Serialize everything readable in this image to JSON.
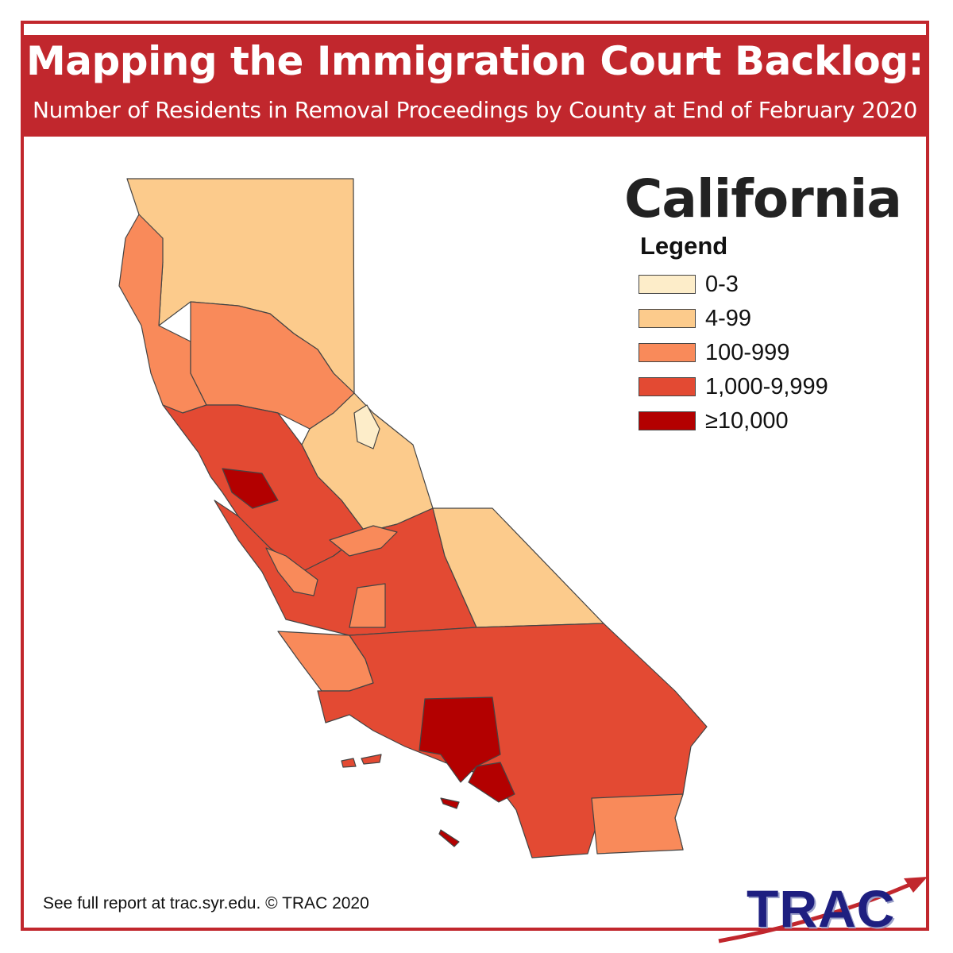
{
  "header": {
    "title": "Mapping the Immigration Court Backlog:",
    "subtitle": "Number of Residents in Removal Proceedings by County at End of February 2020"
  },
  "map": {
    "state_name": "California",
    "legend_title": "Legend",
    "legend": [
      {
        "label": "0-3",
        "color": "#fdedc9"
      },
      {
        "label": "4-99",
        "color": "#fccb8c"
      },
      {
        "label": "100-999",
        "color": "#f98a5a"
      },
      {
        "label": "1,000-9,999",
        "color": "#e34a33"
      },
      {
        "label": "≥10,000",
        "color": "#b30000"
      }
    ]
  },
  "footer": {
    "note": "See full report at trac.syr.edu. © TRAC 2020"
  },
  "logo": {
    "text": "TRAC",
    "arrow_color": "#c1272d"
  },
  "colors": {
    "accent": "#c1272d",
    "outline": "#444444"
  }
}
